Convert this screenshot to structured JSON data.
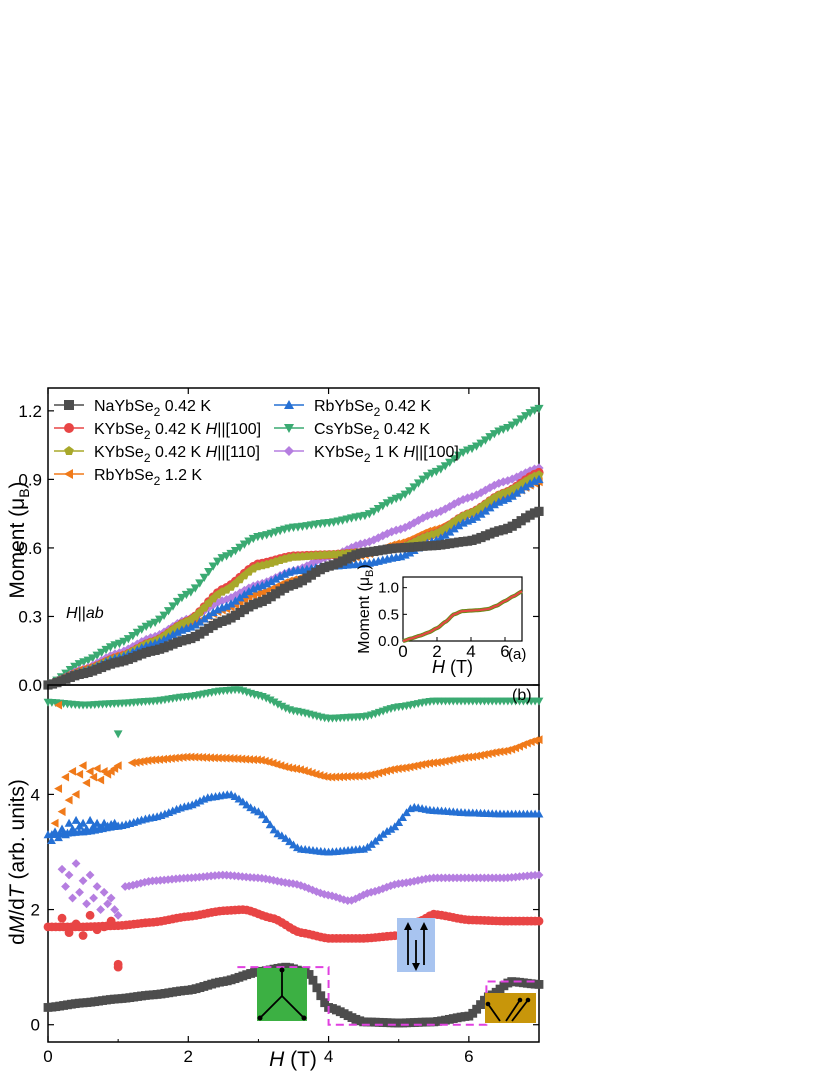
{
  "chart_data": [
    {
      "panel": "(a)",
      "type": "scatter",
      "xlabel": "",
      "ylabel_main": "Moment",
      "ylabel_unit": "μ",
      "ylabel_unit_sub": "B",
      "xlim": [
        0,
        7
      ],
      "ylim": [
        0,
        1.3
      ],
      "yticks": [
        "0.0",
        "0.3",
        "0.6",
        "0.9",
        "1.2"
      ],
      "annotation_field": "H",
      "annotation_field_suffix": "||",
      "annotation_plane": "ab",
      "legend": [
        {
          "name": "NaYbSe",
          "sub": "2",
          "suffix": " 0.42 K",
          "color": "#4d4d4d",
          "marker": "square"
        },
        {
          "name": "KYbSe",
          "sub": "2",
          "suffix": " 0.42 K ",
          "field": "H",
          "dir": "||[100]",
          "color": "#e84545",
          "marker": "circle"
        },
        {
          "name": "KYbSe",
          "sub": "2",
          "suffix": " 0.42 K ",
          "field": "H",
          "dir": "||[110]",
          "color": "#a8a82a",
          "marker": "pentagon"
        },
        {
          "name": "RbYbSe",
          "sub": "2",
          "suffix": " 1.2 K",
          "color": "#f07a1a",
          "marker": "triangle-left"
        },
        {
          "name": "RbYbSe",
          "sub": "2",
          "suffix": " 0.42 K",
          "color": "#2570d4",
          "marker": "triangle-up"
        },
        {
          "name": "CsYbSe",
          "sub": "2",
          "suffix": " 0.42 K",
          "color": "#3aaa72",
          "marker": "triangle-down"
        },
        {
          "name": "KYbSe",
          "sub": "2",
          "suffix": " 1 K ",
          "field": "H",
          "dir": "||[100]",
          "color": "#b57ee0",
          "marker": "diamond"
        }
      ],
      "series": [
        {
          "name": "CsYbSe2 0.42 K",
          "color": "#3aaa72",
          "marker": "triangle-down",
          "x": [
            0,
            0.5,
            1,
            1.5,
            2,
            2.5,
            3,
            3.5,
            4,
            4.5,
            5,
            5.5,
            6,
            6.5,
            7
          ],
          "y": [
            0,
            0.1,
            0.18,
            0.27,
            0.4,
            0.56,
            0.65,
            0.69,
            0.71,
            0.74,
            0.82,
            0.93,
            1.03,
            1.12,
            1.21
          ]
        },
        {
          "name": "KYbSe2 1 K H||[100]",
          "color": "#b57ee0",
          "marker": "diamond",
          "x": [
            0,
            0.5,
            1,
            1.5,
            2,
            2.5,
            3,
            3.5,
            4,
            4.5,
            5,
            5.5,
            6,
            6.5,
            7
          ],
          "y": [
            0,
            0.07,
            0.14,
            0.21,
            0.29,
            0.37,
            0.44,
            0.5,
            0.56,
            0.62,
            0.68,
            0.75,
            0.82,
            0.89,
            0.95
          ]
        },
        {
          "name": "RbYbSe2 1.2 K",
          "color": "#f07a1a",
          "marker": "triangle-left",
          "x": [
            0,
            0.5,
            1,
            1.5,
            2,
            2.5,
            3,
            3.5,
            4,
            4.5,
            5,
            5.5,
            6,
            6.5,
            7
          ],
          "y": [
            0,
            0.07,
            0.13,
            0.19,
            0.26,
            0.33,
            0.4,
            0.46,
            0.52,
            0.57,
            0.62,
            0.68,
            0.75,
            0.82,
            0.89
          ]
        },
        {
          "name": "KYbSe2 0.42 K H||[100]",
          "color": "#e84545",
          "marker": "circle",
          "x": [
            0,
            0.5,
            1,
            1.5,
            2,
            2.5,
            3,
            3.5,
            4,
            4.5,
            5,
            5.5,
            6,
            6.5,
            7
          ],
          "y": [
            0,
            0.06,
            0.12,
            0.19,
            0.28,
            0.42,
            0.53,
            0.565,
            0.57,
            0.58,
            0.6,
            0.66,
            0.75,
            0.84,
            0.93
          ]
        },
        {
          "name": "KYbSe2 0.42 K H||[110]",
          "color": "#a8a82a",
          "marker": "pentagon",
          "x": [
            0,
            0.5,
            1,
            1.5,
            2,
            2.5,
            3,
            3.5,
            4,
            4.5,
            5,
            5.5,
            6,
            6.5,
            7
          ],
          "y": [
            0,
            0.06,
            0.12,
            0.19,
            0.28,
            0.41,
            0.52,
            0.56,
            0.57,
            0.58,
            0.6,
            0.66,
            0.75,
            0.84,
            0.92
          ]
        },
        {
          "name": "RbYbSe2 0.42 K",
          "color": "#2570d4",
          "marker": "triangle-up",
          "x": [
            0,
            0.5,
            1,
            1.5,
            2,
            2.5,
            3,
            3.5,
            4,
            4.5,
            5,
            5.5,
            6,
            6.5,
            7
          ],
          "y": [
            0,
            0.06,
            0.12,
            0.18,
            0.25,
            0.34,
            0.43,
            0.5,
            0.52,
            0.53,
            0.56,
            0.63,
            0.72,
            0.81,
            0.9
          ]
        },
        {
          "name": "NaYbSe2 0.42 K",
          "color": "#4d4d4d",
          "marker": "square",
          "x": [
            0,
            0.5,
            1,
            1.5,
            2,
            2.5,
            3,
            3.5,
            4,
            4.5,
            5,
            5.5,
            6,
            6.5,
            7
          ],
          "y": [
            0,
            0.05,
            0.1,
            0.15,
            0.2,
            0.28,
            0.36,
            0.44,
            0.52,
            0.58,
            0.6,
            0.61,
            0.63,
            0.68,
            0.76
          ]
        }
      ],
      "inset": {
        "xlabel_field": "H",
        "xlabel_unit": " (T)",
        "ylabel_main": "Moment (μ",
        "ylabel_sub": "B",
        "ylabel_end": ")",
        "xlim": [
          0,
          7
        ],
        "ylim": [
          0,
          1.2
        ],
        "xticks": [
          "0",
          "2",
          "4",
          "6"
        ],
        "yticks": [
          "0.0",
          "0.5",
          "1.0"
        ],
        "panel_label": "(a)",
        "series": [
          {
            "name": "green",
            "color": "#6b8a1a",
            "x": [
              0,
              0.5,
              1,
              1.5,
              2,
              2.5,
              3,
              3.5,
              4,
              4.5,
              5,
              5.5,
              6,
              6.5,
              7
            ],
            "y": [
              0,
              0.05,
              0.1,
              0.16,
              0.24,
              0.36,
              0.5,
              0.56,
              0.57,
              0.58,
              0.6,
              0.66,
              0.75,
              0.84,
              0.93
            ]
          },
          {
            "name": "red",
            "color": "#e84545",
            "x": [
              0,
              0.5,
              1,
              1.5,
              2,
              2.5,
              3,
              3.5,
              4,
              4.5,
              5,
              5.5,
              6,
              6.5,
              7
            ],
            "y": [
              0,
              0.05,
              0.1,
              0.16,
              0.24,
              0.36,
              0.5,
              0.56,
              0.57,
              0.58,
              0.6,
              0.66,
              0.75,
              0.84,
              0.93
            ]
          }
        ]
      }
    },
    {
      "panel": "(b)",
      "type": "scatter",
      "xlabel_field": "H",
      "xlabel_unit": " (T)",
      "ylabel_d1": "d",
      "ylabel_M": "M",
      "ylabel_d2": "/d",
      "ylabel_T": "T",
      "ylabel_unit": " (arb. units)",
      "xlim": [
        0,
        7
      ],
      "ylim": [
        -0.3,
        5.9
      ],
      "xticks": [
        "0",
        "2",
        "4",
        "6"
      ],
      "yticks": [
        "0",
        "2",
        "4"
      ],
      "series": [
        {
          "name": "CsYbSe2 0.42 K",
          "color": "#3aaa72",
          "marker": "triangle-down",
          "x": [
            0,
            0.5,
            1,
            1.5,
            2,
            2.5,
            2.7,
            3,
            3.5,
            4,
            4.5,
            5,
            5.5,
            6,
            6.5,
            7
          ],
          "y": [
            5.6,
            5.55,
            5.58,
            5.62,
            5.7,
            5.8,
            5.82,
            5.72,
            5.45,
            5.32,
            5.35,
            5.52,
            5.62,
            5.62,
            5.62,
            5.62
          ]
        },
        {
          "name": "RbYbSe2 1.2 K",
          "color": "#f07a1a",
          "marker": "triangle-left",
          "x": [
            1.2,
            1.5,
            2,
            2.5,
            3,
            3.5,
            4,
            4.5,
            5,
            5.5,
            6,
            6.5,
            7
          ],
          "y": [
            4.55,
            4.6,
            4.65,
            4.63,
            4.6,
            4.45,
            4.3,
            4.32,
            4.45,
            4.55,
            4.65,
            4.75,
            4.95
          ]
        },
        {
          "name": "RbYbSe2 0.42 K",
          "color": "#2570d4",
          "marker": "triangle-up",
          "x": [
            0,
            0.5,
            1,
            1.5,
            2,
            2.3,
            2.6,
            3,
            3.3,
            3.6,
            4,
            4.5,
            4.9,
            5.2,
            5.5,
            6,
            6.5,
            7
          ],
          "y": [
            3.3,
            3.35,
            3.45,
            3.6,
            3.8,
            3.95,
            4.0,
            3.7,
            3.3,
            3.05,
            3.0,
            3.05,
            3.4,
            3.78,
            3.72,
            3.68,
            3.66,
            3.66
          ]
        },
        {
          "name": "KYbSe2 1 K H||[100]",
          "color": "#b57ee0",
          "marker": "diamond",
          "x": [
            1.1,
            1.5,
            2,
            2.5,
            3,
            3.5,
            4,
            4.3,
            4.6,
            5,
            5.5,
            6,
            6.5,
            7
          ],
          "y": [
            2.4,
            2.5,
            2.55,
            2.6,
            2.55,
            2.45,
            2.25,
            2.15,
            2.3,
            2.45,
            2.55,
            2.55,
            2.55,
            2.6
          ]
        },
        {
          "name": "KYbSe2 0.42 K H||[100]",
          "color": "#e84545",
          "marker": "circle",
          "x": [
            0,
            0.5,
            1,
            1.5,
            2,
            2.5,
            2.8,
            3.2,
            3.6,
            4,
            4.5,
            5,
            5.3,
            5.5,
            6,
            6.5,
            7
          ],
          "y": [
            1.7,
            1.7,
            1.72,
            1.78,
            1.88,
            1.98,
            2.0,
            1.85,
            1.6,
            1.5,
            1.5,
            1.55,
            1.8,
            1.92,
            1.82,
            1.8,
            1.8
          ]
        },
        {
          "name": "NaYbSe2 0.42 K",
          "color": "#4d4d4d",
          "marker": "square",
          "x": [
            0,
            0.5,
            1,
            1.5,
            2,
            2.5,
            3,
            3.4,
            3.7,
            4,
            4.5,
            5,
            5.5,
            6,
            6.3,
            6.6,
            7
          ],
          "y": [
            0.3,
            0.38,
            0.45,
            0.52,
            0.6,
            0.75,
            0.92,
            1.0,
            0.9,
            0.3,
            0.05,
            0.03,
            0.05,
            0.15,
            0.5,
            0.75,
            0.7
          ]
        }
      ],
      "scatter_noise": [
        {
          "color": "#f07a1a",
          "marker": "triangle-left",
          "x": [
            0.1,
            0.15,
            0.2,
            0.25,
            0.3,
            0.35,
            0.4,
            0.45,
            0.5,
            0.55,
            0.6,
            0.65,
            0.7,
            0.75,
            0.8,
            0.85,
            0.9,
            0.95,
            1.0
          ],
          "y": [
            3.5,
            4.1,
            3.7,
            4.3,
            3.9,
            4.4,
            4.0,
            4.35,
            4.5,
            4.2,
            4.4,
            4.3,
            4.45,
            4.25,
            4.4,
            4.35,
            4.4,
            4.45,
            4.5
          ]
        },
        {
          "color": "#2570d4",
          "marker": "triangle-up",
          "x": [
            0.05,
            0.1,
            0.15,
            0.2,
            0.25,
            0.3,
            0.35,
            0.4,
            0.45,
            0.5,
            0.55,
            0.6,
            0.65,
            0.7,
            0.75,
            0.8,
            0.85,
            0.9,
            0.95,
            1.0
          ],
          "y": [
            3.2,
            3.35,
            3.25,
            3.4,
            3.3,
            3.5,
            3.4,
            3.55,
            3.45,
            3.5,
            3.4,
            3.55,
            3.45,
            3.5,
            3.42,
            3.5,
            3.45,
            3.48,
            3.5,
            3.45
          ]
        },
        {
          "color": "#b57ee0",
          "marker": "diamond",
          "x": [
            0.2,
            0.25,
            0.3,
            0.35,
            0.4,
            0.45,
            0.5,
            0.55,
            0.6,
            0.65,
            0.7,
            0.75,
            0.8,
            0.85,
            0.9,
            0.95,
            1.0
          ],
          "y": [
            2.7,
            2.4,
            2.6,
            2.2,
            2.8,
            2.3,
            2.5,
            2.1,
            2.6,
            2.2,
            2.4,
            2.0,
            2.3,
            2.1,
            2.2,
            2.0,
            1.9
          ]
        },
        {
          "color": "#e84545",
          "marker": "circle",
          "x": [
            0.2,
            0.3,
            0.4,
            0.5,
            0.6,
            0.7,
            0.8,
            0.9,
            1.0,
            1.0
          ],
          "y": [
            1.85,
            1.6,
            1.75,
            1.55,
            1.9,
            1.65,
            1.7,
            1.8,
            1.05,
            1.0
          ]
        }
      ],
      "outlier_green_x": 1.0,
      "outlier_green_y": 5.05,
      "outlier_orange_x": 0.15,
      "outlier_orange_y": 5.55,
      "panel_label": "(b)",
      "highlight_box_color": "#e040e0",
      "insets": [
        {
          "name": "green-spin-icon",
          "color": "#3cb043",
          "config": "120-degree"
        },
        {
          "name": "blue-spin-icon",
          "color": "#a8c4f0",
          "config": "up-up-down"
        },
        {
          "name": "gold-spin-icon",
          "color": "#c8960a",
          "config": "canted"
        }
      ]
    }
  ]
}
